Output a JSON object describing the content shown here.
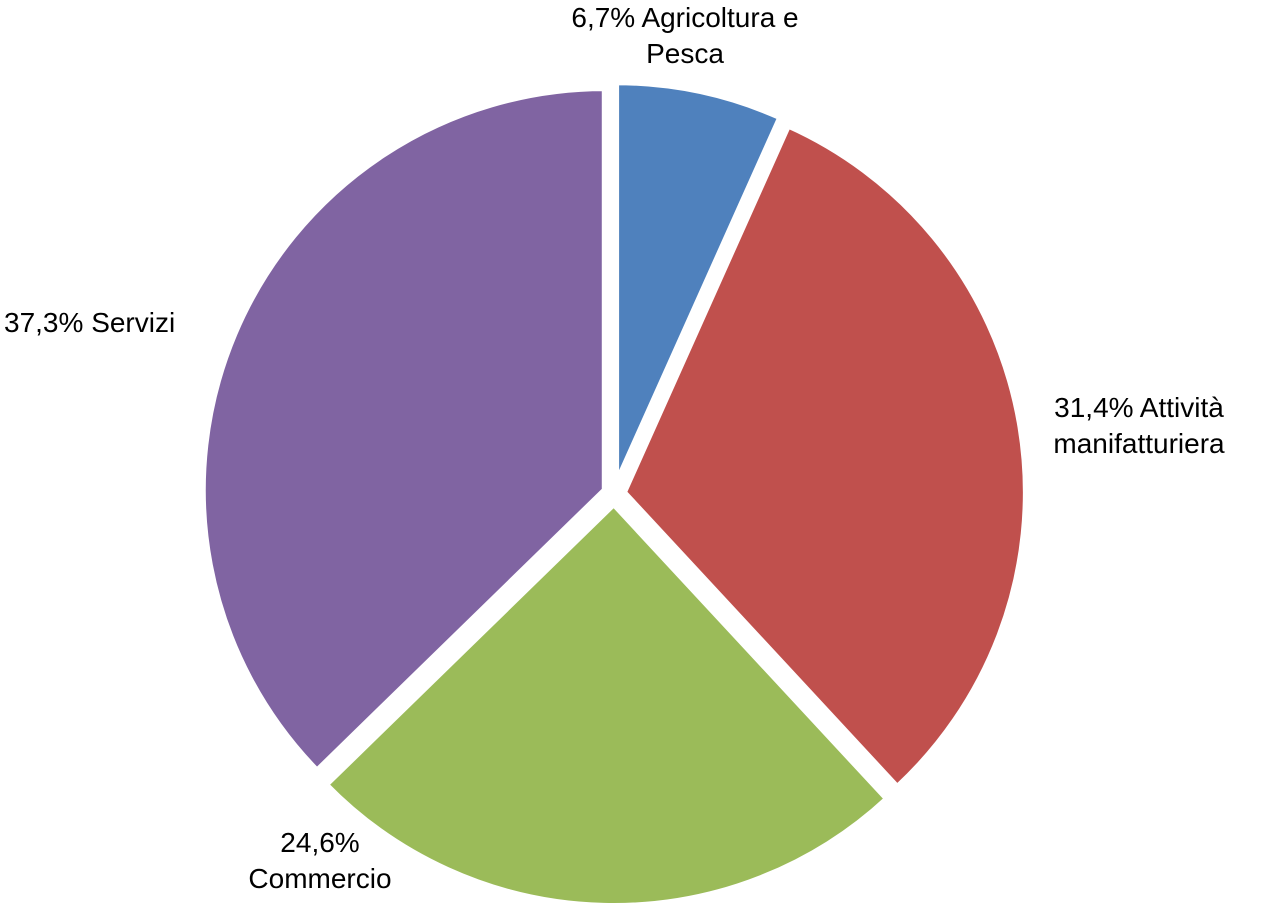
{
  "chart_data": {
    "type": "pie",
    "categories": [
      "Agricoltura e Pesca",
      "Attività manifatturiera",
      "Commercio",
      "Servizi"
    ],
    "values": [
      6.7,
      31.4,
      24.6,
      37.3
    ],
    "value_labels": [
      "6,7%",
      "31,4%",
      "24,6%",
      "37,3%"
    ],
    "colors": [
      "#4f81bd",
      "#c0504d",
      "#9bbb59",
      "#8064a2"
    ]
  }
}
